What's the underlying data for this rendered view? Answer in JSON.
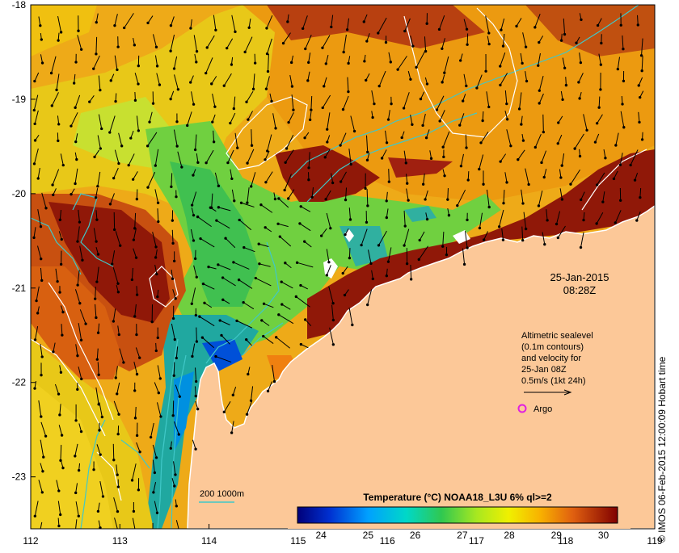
{
  "map": {
    "lon_ticks": [
      "112",
      "113",
      "114",
      "115",
      "116",
      "117",
      "118",
      "119"
    ],
    "lat_ticks": [
      "-18",
      "-19",
      "-20",
      "-21",
      "-22",
      "-23"
    ],
    "lon_range": [
      112,
      119
    ],
    "lat_range": [
      -23.55,
      -18
    ],
    "date": "25-Jan-2015",
    "time": "08:28Z",
    "altimetry_lines": [
      "Altimetric sealevel",
      "(0.1m contours)",
      "and velocity for",
      "25-Jan 08Z",
      "0.5m/s (1kt 24h)"
    ],
    "argo_label": "Argo",
    "depth_legend": "200  1000m",
    "colorbar_title": "Temperature (°C) NOAA18_L3U 6% ql>=2",
    "colorbar_ticks": [
      "24",
      "25",
      "26",
      "27",
      "28",
      "29",
      "30"
    ],
    "colorbar_range": [
      23.5,
      30.3
    ],
    "copyright": "© IMOS 06-Feb-2015 12:00:09 Hobart time",
    "colors": {
      "land": "#fcc898",
      "contour_depth": "#40c8c8",
      "contour_sealevel": "#ffffff",
      "argo": "#e020e0"
    }
  }
}
